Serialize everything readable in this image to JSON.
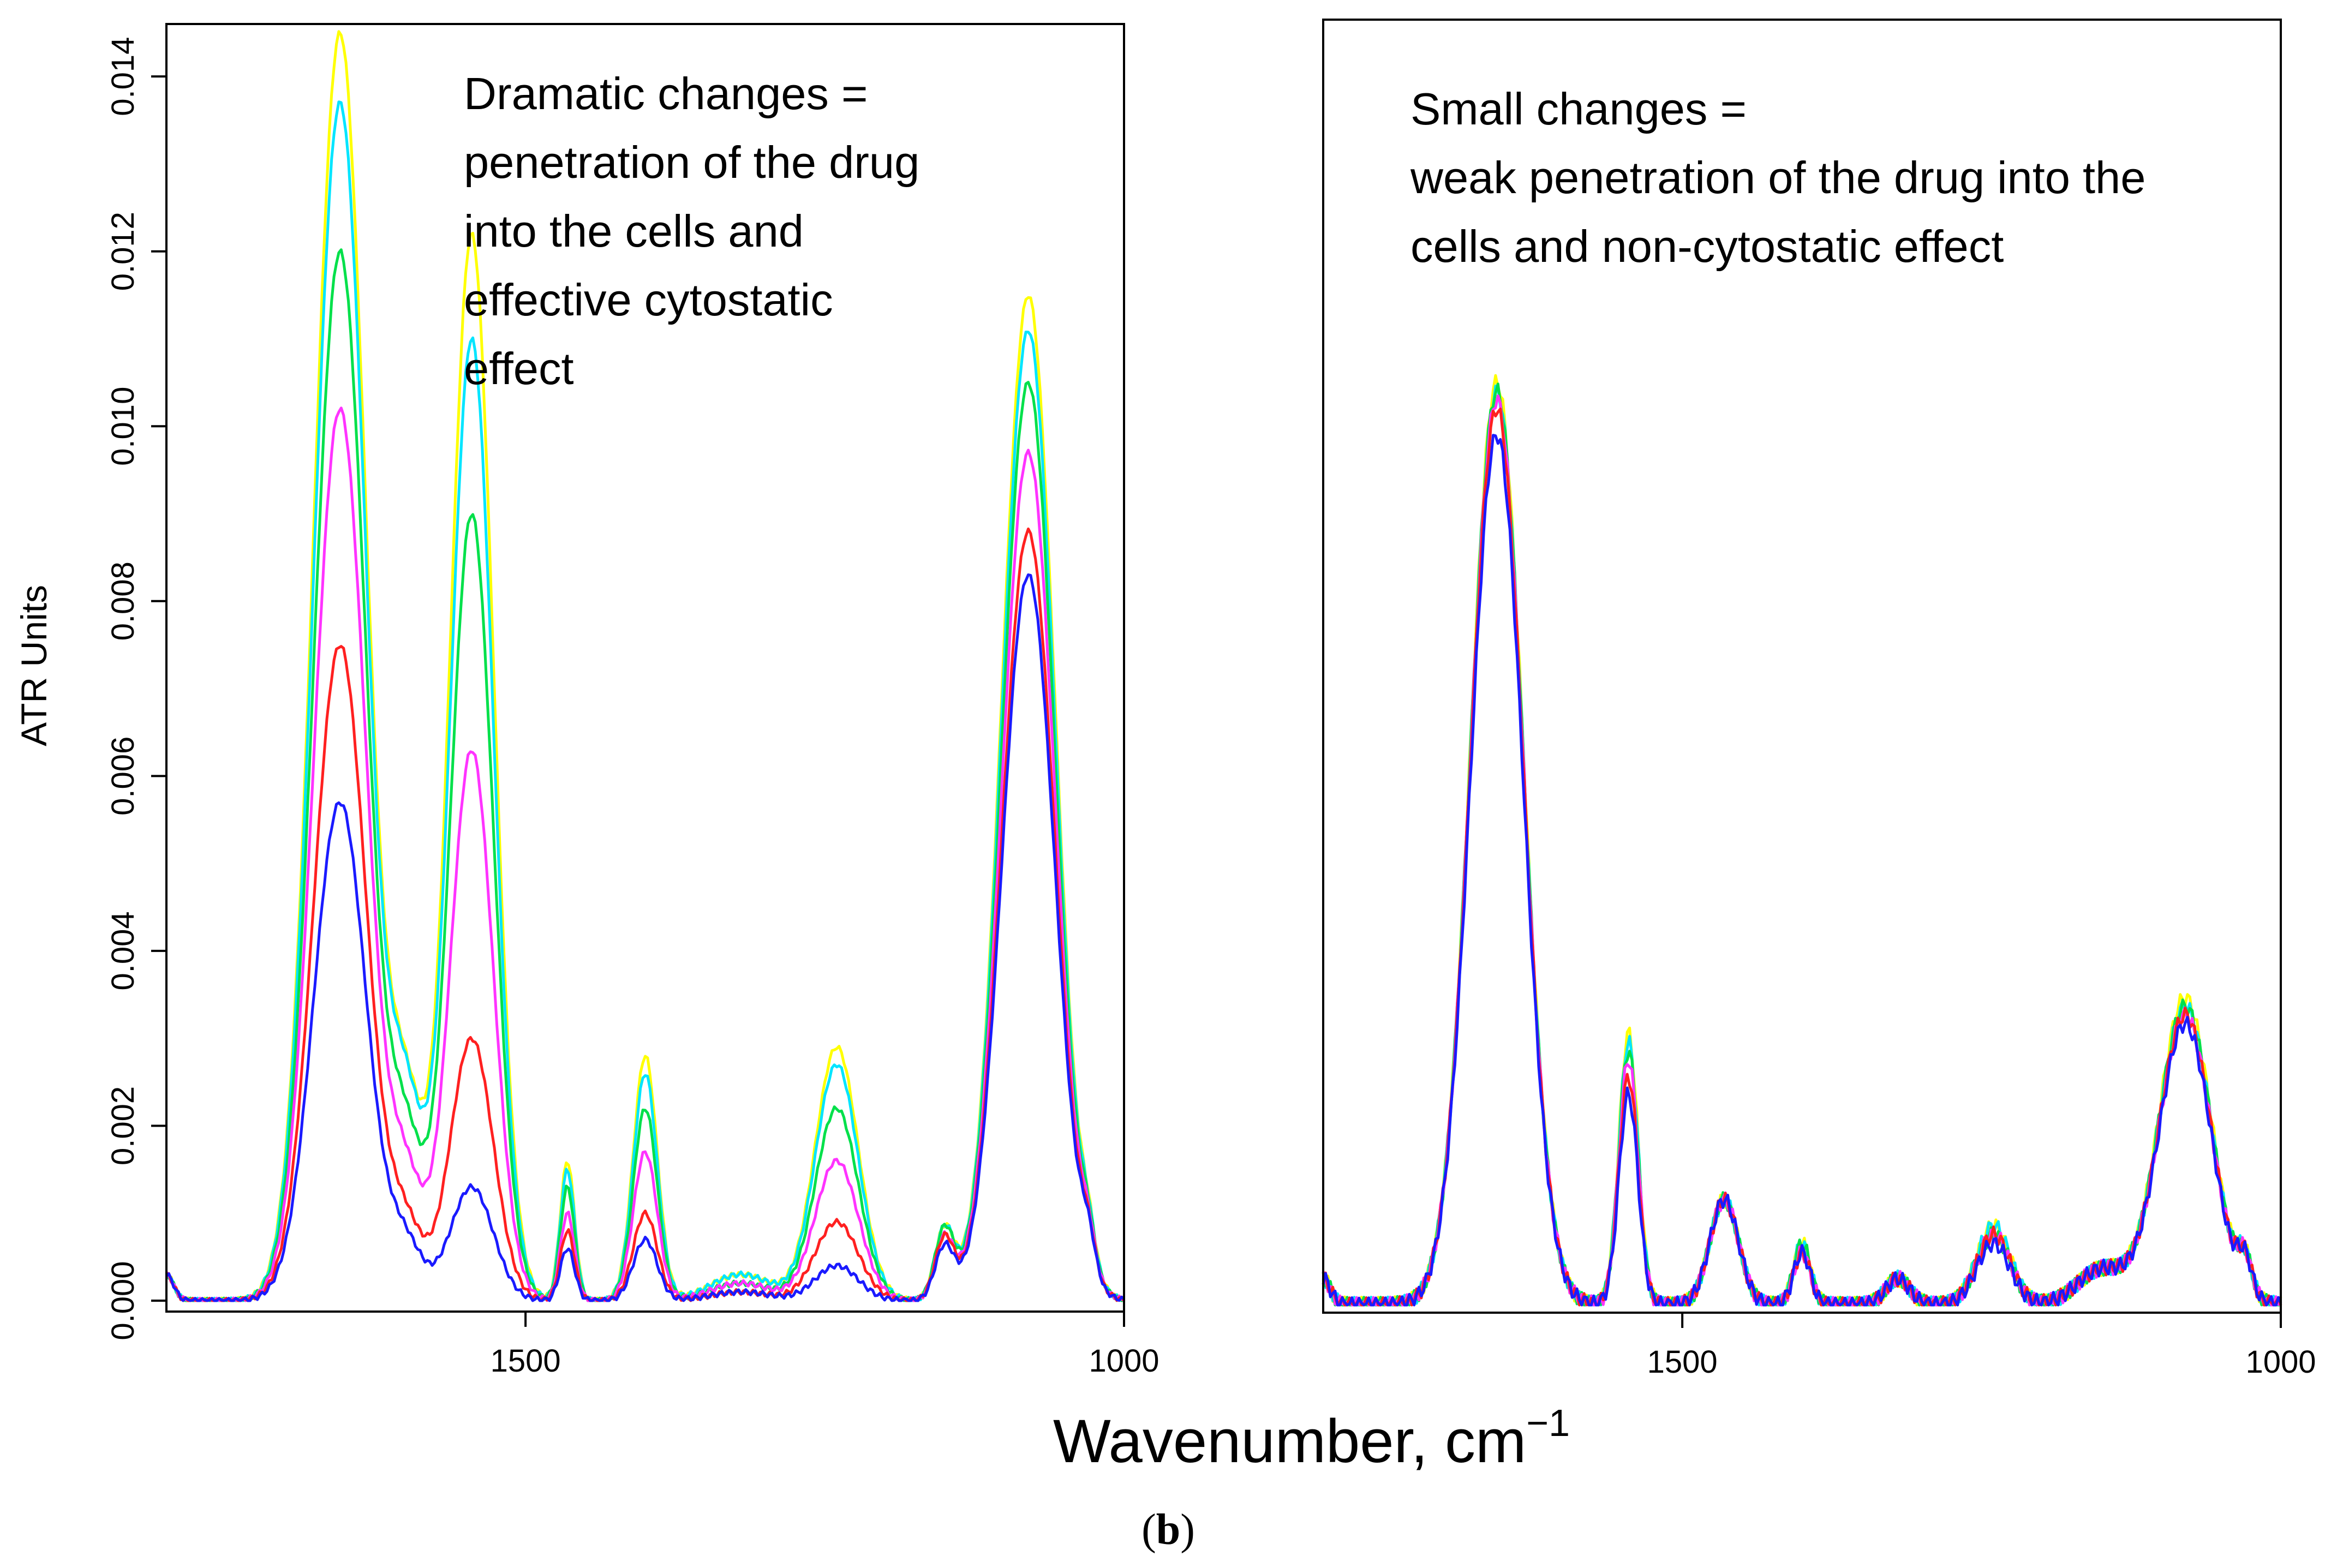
{
  "chart_data": [
    {
      "type": "line",
      "panel": "left",
      "ylabel": "ATR Units",
      "xlim": [
        1800,
        1000
      ],
      "ylim": [
        0,
        0.0145
      ],
      "yticks": [
        0.0,
        0.002,
        0.004,
        0.006,
        0.008,
        0.01,
        0.012,
        0.014
      ],
      "ytick_labels": [
        "0.000",
        "0.002",
        "0.004",
        "0.006",
        "0.008",
        "0.010",
        "0.012",
        "0.014"
      ],
      "xticks": [
        1500,
        1000
      ],
      "xtick_labels": [
        "1500",
        "1000"
      ],
      "annotation_lines": [
        "Dramatic changes =",
        "penetration of the drug",
        "into the cells and",
        "effective cytostatic",
        "effect"
      ],
      "peak_centers": [
        1800,
        1765,
        1655,
        1600,
        1545,
        1465,
        1400,
        1320,
        1240,
        1150,
        1080,
        1030
      ],
      "series": [
        {
          "name": "yellow",
          "color": "#ffff00",
          "heights": [
            0.0003,
            0.0,
            0.0145,
            0.0021,
            0.0122,
            0.0016,
            0.0028,
            0.0003,
            0.0029,
            0.0008,
            0.0115,
            0.0004
          ]
        },
        {
          "name": "cyan",
          "color": "#00e5ff",
          "heights": [
            0.0003,
            0.0,
            0.0137,
            0.0021,
            0.011,
            0.0015,
            0.0026,
            0.0003,
            0.0027,
            0.0008,
            0.0111,
            0.0004
          ]
        },
        {
          "name": "green",
          "color": "#00e04a",
          "heights": [
            0.0003,
            0.0,
            0.012,
            0.0017,
            0.009,
            0.0013,
            0.0022,
            0.0002,
            0.0022,
            0.0008,
            0.0105,
            0.0004
          ]
        },
        {
          "name": "magenta",
          "color": "#ff33ff",
          "heights": [
            0.0003,
            0.0,
            0.0102,
            0.0013,
            0.0063,
            0.001,
            0.0017,
            0.0002,
            0.0016,
            0.0007,
            0.0097,
            0.0004
          ]
        },
        {
          "name": "red",
          "color": "#ff2020",
          "heights": [
            0.0003,
            0.0,
            0.0075,
            0.0008,
            0.003,
            0.0008,
            0.001,
            0.0001,
            0.0009,
            0.0007,
            0.0088,
            0.0004
          ]
        },
        {
          "name": "blue",
          "color": "#1a1aff",
          "heights": [
            0.0003,
            0.0,
            0.0057,
            0.0006,
            0.0013,
            0.0006,
            0.0007,
            0.0001,
            0.0004,
            0.0006,
            0.0083,
            0.0004
          ]
        }
      ]
    },
    {
      "type": "line",
      "panel": "right",
      "xlim": [
        1800,
        1000
      ],
      "ylim": [
        0,
        0.0145
      ],
      "xticks": [
        1500,
        1000
      ],
      "xtick_labels": [
        "1500",
        "1000"
      ],
      "annotation_lines": [
        "Small changes =",
        "weak penetration of the drug into the",
        "cells and non-cytostatic effect"
      ],
      "peak_centers": [
        1800,
        1655,
        1545,
        1465,
        1400,
        1320,
        1240,
        1150,
        1080,
        1030
      ],
      "series": [
        {
          "name": "yellow",
          "color": "#ffff00",
          "heights": [
            0.0003,
            0.0105,
            0.0031,
            0.0012,
            0.0007,
            0.0003,
            0.0009,
            0.0004,
            0.0035,
            0.0004
          ]
        },
        {
          "name": "cyan",
          "color": "#00e5ff",
          "heights": [
            0.0003,
            0.0104,
            0.003,
            0.0012,
            0.0007,
            0.0003,
            0.0009,
            0.0004,
            0.0034,
            0.0004
          ]
        },
        {
          "name": "green",
          "color": "#00e04a",
          "heights": [
            0.0003,
            0.0104,
            0.0029,
            0.0012,
            0.0007,
            0.0003,
            0.0008,
            0.0004,
            0.0034,
            0.0004
          ]
        },
        {
          "name": "magenta",
          "color": "#ff33ff",
          "heights": [
            0.0003,
            0.0103,
            0.0028,
            0.0012,
            0.0006,
            0.0003,
            0.0008,
            0.0004,
            0.0033,
            0.0004
          ]
        },
        {
          "name": "red",
          "color": "#ff2020",
          "heights": [
            0.0003,
            0.0102,
            0.0026,
            0.0012,
            0.0006,
            0.0003,
            0.0008,
            0.0004,
            0.0033,
            0.0004
          ]
        },
        {
          "name": "blue",
          "color": "#1a1aff",
          "heights": [
            0.0003,
            0.0099,
            0.0024,
            0.0012,
            0.0006,
            0.0003,
            0.0007,
            0.0004,
            0.0032,
            0.0004
          ]
        }
      ]
    }
  ],
  "xlabel": "Wavenumber, cm",
  "xlabel_superscript": "−1",
  "panel_label": {
    "open": "(",
    "letter": "b",
    "close": ")"
  }
}
